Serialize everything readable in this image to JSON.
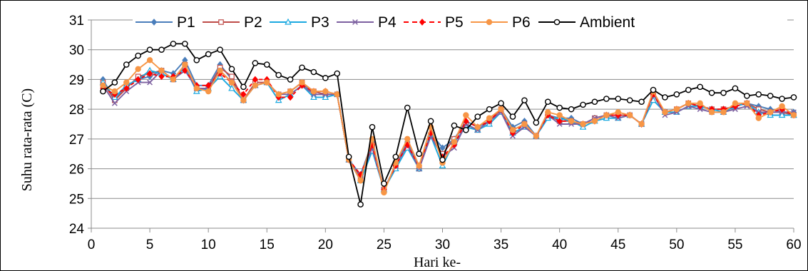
{
  "chart_data": {
    "type": "line",
    "xlabel": "Hari ke-",
    "ylabel": "Suhu rata-rata (C)",
    "xlim": [
      0,
      60
    ],
    "ylim": [
      24,
      31
    ],
    "xticks": [
      0,
      5,
      10,
      15,
      20,
      25,
      30,
      35,
      40,
      45,
      50,
      55,
      60
    ],
    "yticks": [
      24,
      25,
      26,
      27,
      28,
      29,
      30,
      31
    ],
    "grid": "horizontal",
    "legend_position": "top",
    "x": [
      1,
      2,
      3,
      4,
      5,
      6,
      7,
      8,
      9,
      10,
      11,
      12,
      13,
      14,
      15,
      16,
      17,
      18,
      19,
      20,
      21,
      22,
      23,
      24,
      25,
      26,
      27,
      28,
      29,
      30,
      31,
      32,
      33,
      34,
      35,
      36,
      37,
      38,
      39,
      40,
      41,
      42,
      43,
      44,
      45,
      46,
      47,
      48,
      49,
      50,
      51,
      52,
      53,
      54,
      55,
      56,
      57,
      58,
      59,
      60
    ],
    "series": [
      {
        "name": "P1",
        "color": "#4a7ebb",
        "marker": "diamond",
        "dash": "solid",
        "values": [
          29.0,
          28.3,
          28.8,
          29.0,
          29.1,
          29.3,
          29.2,
          29.65,
          28.8,
          28.8,
          29.5,
          29.0,
          28.3,
          28.8,
          28.9,
          28.5,
          28.6,
          28.9,
          28.5,
          28.5,
          28.5,
          26.3,
          25.8,
          26.9,
          25.3,
          26.1,
          26.9,
          26.0,
          27.2,
          26.7,
          27.0,
          27.6,
          27.4,
          27.6,
          28.0,
          27.4,
          27.6,
          27.1,
          27.8,
          27.7,
          27.7,
          27.5,
          27.7,
          27.8,
          27.8,
          27.8,
          27.5,
          28.5,
          27.9,
          28.0,
          28.2,
          28.1,
          28.0,
          28.0,
          28.1,
          28.2,
          28.1,
          28.0,
          27.9,
          27.9
        ]
      },
      {
        "name": "P2",
        "color": "#be4b48",
        "marker": "square-open",
        "dash": "solid",
        "values": [
          28.9,
          28.3,
          28.7,
          29.1,
          29.2,
          29.3,
          29.0,
          29.5,
          28.7,
          28.7,
          29.4,
          29.1,
          28.3,
          28.9,
          28.9,
          28.5,
          28.6,
          28.9,
          28.6,
          28.5,
          28.5,
          26.3,
          25.7,
          26.8,
          25.3,
          26.1,
          26.8,
          26.0,
          27.1,
          26.5,
          27.0,
          27.5,
          27.3,
          27.6,
          28.0,
          27.3,
          27.5,
          27.1,
          27.8,
          27.6,
          27.6,
          27.5,
          27.7,
          27.8,
          27.8,
          27.8,
          27.5,
          28.5,
          27.9,
          28.0,
          28.2,
          28.1,
          28.0,
          28.0,
          28.1,
          28.2,
          28.0,
          27.9,
          27.9,
          27.8
        ]
      },
      {
        "name": "P3",
        "color": "#1ba9e0",
        "marker": "triangle-open",
        "dash": "solid",
        "values": [
          28.9,
          28.4,
          28.8,
          29.0,
          29.3,
          29.2,
          29.0,
          29.4,
          28.6,
          28.7,
          29.1,
          28.7,
          28.3,
          28.8,
          28.9,
          28.3,
          28.5,
          28.8,
          28.4,
          28.4,
          28.5,
          26.3,
          25.6,
          26.6,
          25.3,
          26.0,
          26.7,
          26.0,
          27.1,
          26.1,
          26.9,
          27.4,
          27.3,
          27.5,
          27.9,
          27.2,
          27.4,
          27.1,
          27.7,
          27.7,
          27.6,
          27.4,
          27.6,
          27.7,
          27.7,
          27.8,
          27.5,
          28.3,
          27.9,
          27.9,
          28.1,
          28.1,
          28.0,
          27.9,
          28.1,
          28.2,
          27.9,
          27.8,
          27.8,
          27.8
        ]
      },
      {
        "name": "P4",
        "color": "#7d60a0",
        "marker": "x",
        "dash": "solid",
        "values": [
          28.8,
          28.2,
          28.6,
          28.9,
          28.9,
          29.3,
          29.0,
          29.3,
          28.7,
          28.7,
          29.3,
          28.9,
          28.3,
          28.8,
          28.9,
          28.5,
          28.5,
          28.8,
          28.5,
          28.5,
          28.5,
          26.3,
          25.7,
          26.7,
          25.3,
          26.1,
          26.8,
          26.0,
          27.1,
          26.4,
          26.7,
          27.5,
          27.3,
          27.6,
          27.9,
          27.1,
          27.4,
          27.1,
          27.8,
          27.5,
          27.5,
          27.5,
          27.7,
          27.8,
          27.7,
          27.8,
          27.5,
          28.5,
          27.8,
          27.9,
          28.1,
          28.0,
          27.9,
          27.9,
          28.0,
          28.1,
          27.9,
          27.9,
          27.9,
          27.9
        ]
      },
      {
        "name": "P5",
        "color": "#ff0000",
        "marker": "diamond",
        "dash": "dashed",
        "values": [
          28.7,
          28.5,
          28.7,
          29.0,
          29.2,
          29.1,
          29.1,
          29.3,
          28.8,
          28.8,
          29.2,
          28.9,
          28.5,
          29.0,
          29.0,
          28.4,
          28.4,
          28.8,
          28.6,
          28.6,
          28.5,
          26.3,
          25.8,
          26.8,
          25.3,
          26.1,
          26.8,
          26.1,
          27.2,
          26.4,
          26.8,
          27.6,
          27.4,
          27.6,
          28.0,
          27.2,
          27.5,
          27.1,
          27.8,
          27.6,
          27.6,
          27.5,
          27.6,
          27.8,
          27.8,
          27.8,
          27.5,
          28.5,
          27.9,
          28.0,
          28.2,
          28.1,
          28.0,
          28.0,
          28.1,
          28.2,
          27.8,
          27.9,
          28.0,
          27.8
        ]
      },
      {
        "name": "P6",
        "color": "#f79646",
        "marker": "circle",
        "dash": "solid",
        "values": [
          28.8,
          28.6,
          28.9,
          29.35,
          29.65,
          29.3,
          29.0,
          29.5,
          28.7,
          28.6,
          29.3,
          28.9,
          28.3,
          28.8,
          28.9,
          28.5,
          28.6,
          28.9,
          28.6,
          28.6,
          28.5,
          26.3,
          25.6,
          27.0,
          25.2,
          26.2,
          27.0,
          26.1,
          27.4,
          26.2,
          26.9,
          27.8,
          27.4,
          27.7,
          28.0,
          27.3,
          27.5,
          27.1,
          27.9,
          27.8,
          27.6,
          27.5,
          27.6,
          27.8,
          27.9,
          27.8,
          27.5,
          28.6,
          27.9,
          28.0,
          28.2,
          28.2,
          27.9,
          27.9,
          28.2,
          28.2,
          27.7,
          27.9,
          28.1,
          27.8
        ]
      },
      {
        "name": "Ambient",
        "color": "#000000",
        "marker": "circle-open",
        "dash": "solid",
        "values": [
          28.6,
          28.9,
          29.5,
          29.8,
          30.0,
          30.0,
          30.2,
          30.2,
          29.65,
          29.85,
          30.0,
          29.35,
          28.75,
          29.55,
          29.5,
          29.15,
          29.0,
          29.4,
          29.25,
          29.05,
          29.2,
          26.4,
          24.8,
          27.4,
          25.5,
          26.4,
          28.05,
          26.5,
          27.6,
          26.3,
          27.45,
          27.3,
          27.75,
          28.0,
          28.2,
          27.75,
          28.3,
          27.55,
          28.25,
          28.05,
          28.0,
          28.15,
          28.25,
          28.35,
          28.35,
          28.3,
          28.25,
          28.65,
          28.4,
          28.5,
          28.65,
          28.75,
          28.55,
          28.55,
          28.7,
          28.45,
          28.5,
          28.45,
          28.35,
          28.4
        ]
      }
    ]
  }
}
